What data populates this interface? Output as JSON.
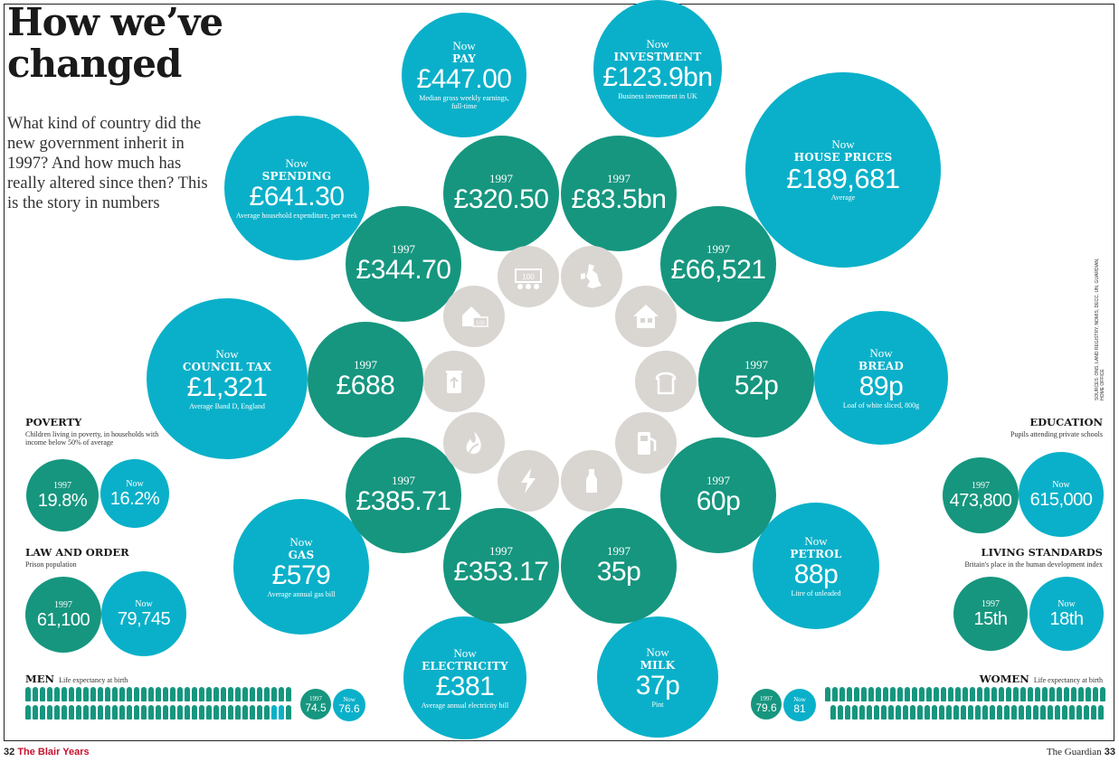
{
  "title_line1": "How we’ve",
  "title_line2": "changed",
  "intro": "What kind of country did the new government inherit in 1997? And how much has really altered since then? This is the story in numbers",
  "labels": {
    "now": "Now",
    "y1997": "1997"
  },
  "colors": {
    "teal": "#16967f",
    "blue": "#0ab0c9",
    "gray": "#d9d6d2"
  },
  "items": {
    "pay": {
      "category": "PAY",
      "now": "£447.00",
      "desc": "Median gross weekly earnings, full-time",
      "then": "£320.50",
      "icon": "banknote-icon"
    },
    "investment": {
      "category": "INVESTMENT",
      "now": "£123.9bn",
      "desc": "Business investment in UK",
      "then": "£83.5bn",
      "icon": "uk-map-icon"
    },
    "house_prices": {
      "category": "HOUSE PRICES",
      "now": "£189,681",
      "desc": "Average",
      "then": "£66,521",
      "icon": "house-icon"
    },
    "spending": {
      "category": "SPENDING",
      "now": "£641.30",
      "desc": "Average household expenditure, per week",
      "then": "£344.70",
      "icon": "house-money-icon"
    },
    "council_tax": {
      "category": "COUNCIL TAX",
      "now": "£1,321",
      "desc": "Average Band D, England",
      "then": "£688",
      "icon": "bin-icon"
    },
    "bread": {
      "category": "BREAD",
      "now": "89p",
      "desc": "Loaf of white sliced, 800g",
      "then": "52p",
      "icon": "bread-icon"
    },
    "gas": {
      "category": "GAS",
      "now": "£579",
      "desc": "Average annual gas bill",
      "then": "£385.71",
      "icon": "flame-icon"
    },
    "electricity": {
      "category": "ELECTRICITY",
      "now": "£381",
      "desc": "Average annual electricity bill",
      "then": "£353.17",
      "icon": "lightning-icon"
    },
    "milk": {
      "category": "MILK",
      "now": "37p",
      "desc": "Pint",
      "then": "35p",
      "icon": "milk-bottle-icon"
    },
    "petrol": {
      "category": "PETROL",
      "now": "88p",
      "desc": "Litre of unleaded",
      "then": "60p",
      "icon": "fuel-pump-icon"
    }
  },
  "poverty": {
    "title": "POVERTY",
    "sub": "Children living in poverty, in households with income below 50% of average",
    "then": "19.8%",
    "now": "16.2%"
  },
  "law": {
    "title": "LAW AND ORDER",
    "sub": "Prison population",
    "then": "61,100",
    "now": "79,745"
  },
  "men": {
    "title": "MEN",
    "sub": "Life expectancy at birth",
    "then": "74.5",
    "now": "76.6"
  },
  "education": {
    "title": "EDUCATION",
    "sub": "Pupils attending private schools",
    "then": "473,800",
    "now": "615,000"
  },
  "living": {
    "title": "LIVING STANDARDS",
    "sub": "Britain's place in the human development index",
    "then": "15th",
    "now": "18th"
  },
  "women": {
    "title": "WOMEN",
    "sub": "Life expectancy at birth",
    "then": "79.6",
    "now": "81"
  },
  "footer": {
    "left_page": "32",
    "left_section": "The Blair Years",
    "right_paper": "The Guardian",
    "right_page": "33"
  },
  "sources": "SOURCES: ONS, LAND REGISTRY, NOMIS, DECC, UN, GUARDIAN, HOME OFFICE"
}
